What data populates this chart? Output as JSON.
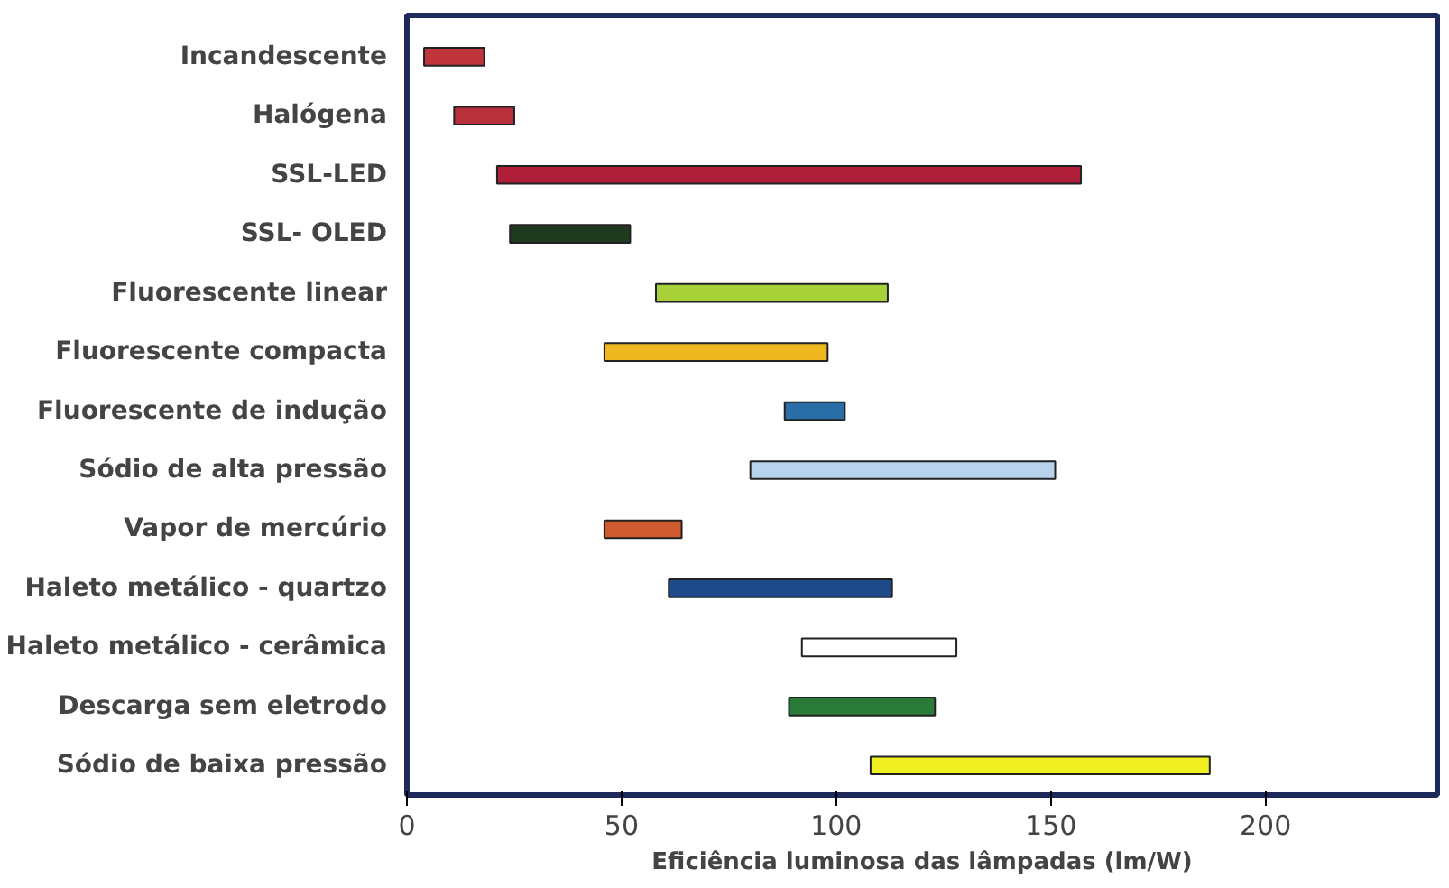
{
  "chart_data": {
    "type": "bar",
    "orientation": "horizontal",
    "xlabel": "Eficiência luminosa das lâmpadas (lm/W)",
    "categories": [
      "Incandescente",
      "Halógena",
      "SSL-LED",
      "SSL- OLED",
      "Fluorescente linear",
      "Fluorescente compacta",
      "Fluorescente de indução",
      "Sódio de alta pressão",
      "Vapor de mercúrio",
      "Haleto metálico - quartzo",
      "Haleto metálico - cerâmica",
      "Descarga sem eletrodo",
      "Sódio de baixa pressão"
    ],
    "base": [
      4,
      11,
      21,
      24,
      58,
      46,
      88,
      80,
      46,
      61,
      92,
      89,
      108
    ],
    "values": [
      14,
      14,
      136,
      28,
      54,
      52,
      14,
      71,
      18,
      52,
      36,
      34,
      79
    ],
    "colors": [
      "#c0343c",
      "#b8303c",
      "#b01f3a",
      "#1f3a1f",
      "#a8d038",
      "#f0b820",
      "#2a6ea8",
      "#b8d4ec",
      "#d05a30",
      "#1e4a8a",
      "#ffffff",
      "#2a7a3a",
      "#f0f020"
    ],
    "xlim": [
      0,
      240
    ],
    "xticks": [
      0,
      50,
      100,
      150,
      200
    ],
    "grid": false
  }
}
